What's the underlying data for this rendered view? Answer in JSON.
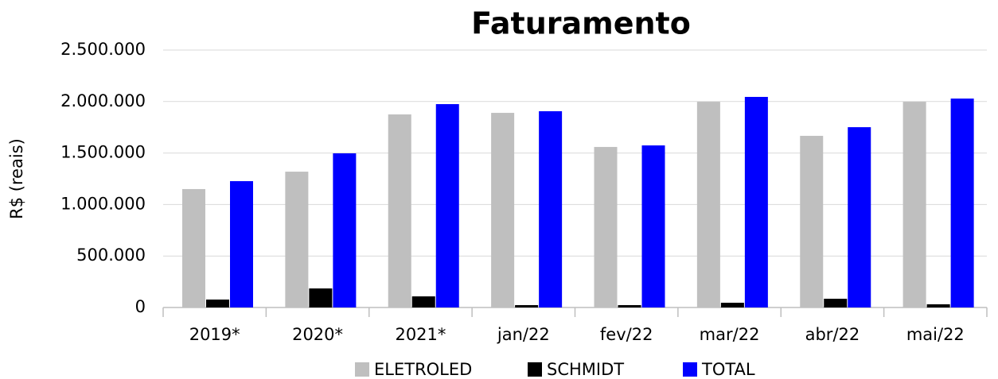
{
  "chart_data": {
    "type": "bar",
    "title": "Faturamento",
    "y_label": "R$ (reais)",
    "categories": [
      "2019*",
      "2020*",
      "2021*",
      "jan/22",
      "fev/22",
      "mar/22",
      "abr/22",
      "mai/22"
    ],
    "series": [
      {
        "name": "ELETROLED",
        "color": "#bfbfbf",
        "values": [
          1150000,
          1319000,
          1875000,
          1890000,
          1559000,
          1998000,
          1667000,
          1998000
        ]
      },
      {
        "name": "SCHMIDT",
        "color": "#000000",
        "values": [
          77000,
          185000,
          108000,
          23000,
          23000,
          46000,
          85000,
          31000
        ]
      },
      {
        "name": "TOTAL",
        "color": "#0000ff",
        "values": [
          1227000,
          1497000,
          1975000,
          1906000,
          1574000,
          2045000,
          1751000,
          2029000
        ]
      }
    ],
    "ylim": [
      0,
      2500000
    ],
    "yticks": [
      0,
      {
        "value": 500000,
        "label": "500.000"
      },
      {
        "value": 1000000,
        "label": "1.000.000"
      },
      {
        "value": 1500000,
        "label": "1.500.000"
      },
      {
        "value": 2000000,
        "label": "2.000.000"
      },
      {
        "value": 2500000,
        "label": "2.500.000"
      }
    ],
    "grid": true,
    "legend": "bottom"
  }
}
